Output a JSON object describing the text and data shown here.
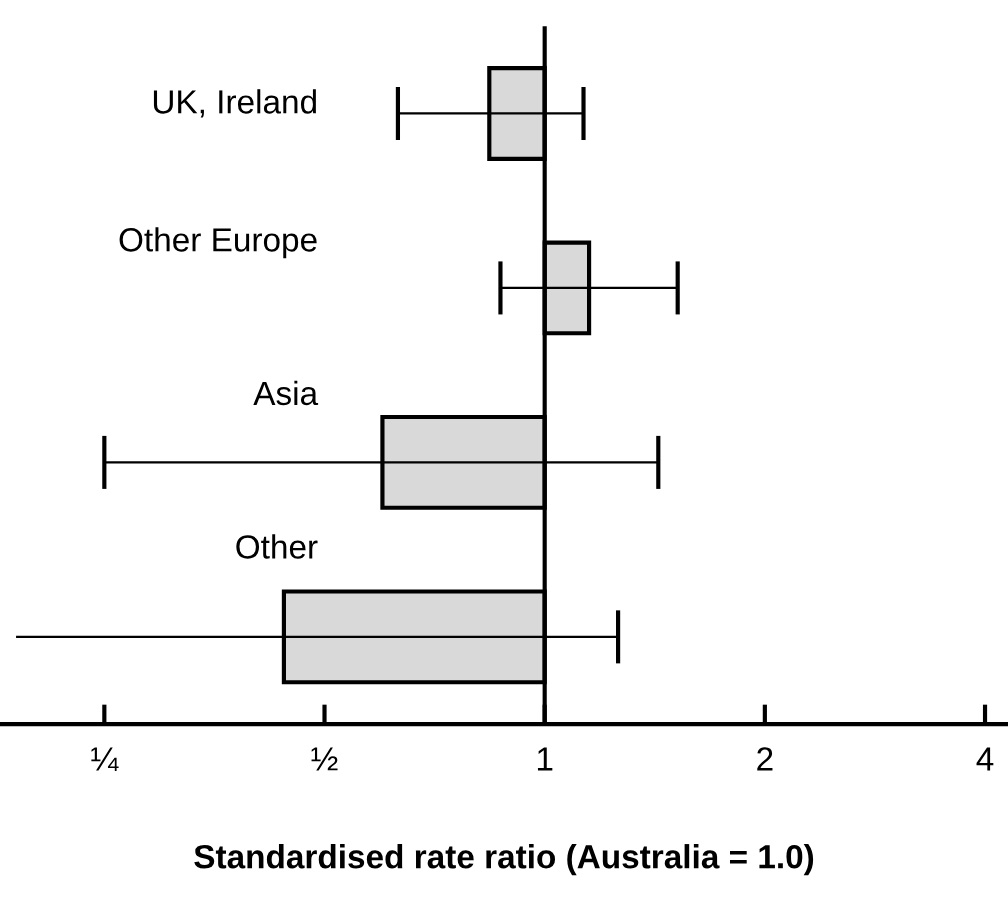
{
  "chart_data": {
    "type": "bar",
    "orientation": "horizontal",
    "log": "x",
    "xlabel": "Standardised rate ratio (Australia = 1.0)",
    "categories": [
      "UK, Ireland",
      "Other Europe",
      "Asia",
      "Other"
    ],
    "base": [
      1,
      1,
      1,
      1
    ],
    "values": [
      -0.16,
      0.15,
      -0.4,
      -0.56
    ],
    "errors": [
      [
        0.63,
        1.13
      ],
      [
        0.87,
        1.52
      ],
      [
        0.25,
        1.43
      ],
      [
        0.19,
        1.26
      ]
    ],
    "color": "#d9d9d9",
    "xlim": [
      0.18,
      4.3
    ],
    "xticks": [
      {
        "value": 0.25,
        "label": "¼"
      },
      {
        "value": 0.5,
        "label": "½"
      },
      1,
      2,
      4
    ],
    "ref_lines": [
      {
        "axis": "x",
        "value": 1,
        "color": "#000000"
      }
    ],
    "grid": false
  }
}
